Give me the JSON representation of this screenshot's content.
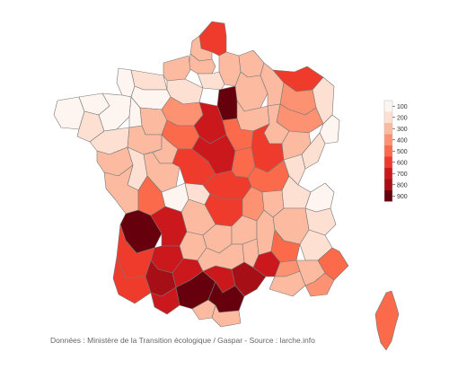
{
  "source_text": "Données : Ministère de la Transition écologique / Gaspar - Source : larche.info",
  "legend": {
    "ticks": [
      "100",
      "200",
      "300",
      "400",
      "500",
      "600",
      "700",
      "800",
      "900"
    ],
    "colors": [
      "#fff5f0",
      "#fee0d2",
      "#fcbba1",
      "#fc9272",
      "#fb6a4a",
      "#ef3b2c",
      "#cb181d",
      "#a50f15",
      "#67000d"
    ]
  },
  "map": {
    "type": "choropleth",
    "subject": "France departments",
    "color_scale": "white to dark red",
    "regions": [
      {
        "name": "nord",
        "value": 600
      },
      {
        "name": "pas-de-calais",
        "value": 300
      },
      {
        "name": "somme",
        "value": 300
      },
      {
        "name": "aisne",
        "value": 300
      },
      {
        "name": "oise",
        "value": 200
      },
      {
        "name": "paris-region",
        "value": 900
      },
      {
        "name": "manche",
        "value": 100
      },
      {
        "name": "calvados",
        "value": 200
      },
      {
        "name": "eure",
        "value": 200
      },
      {
        "name": "seine-maritime",
        "value": 300
      },
      {
        "name": "orne",
        "value": 100
      },
      {
        "name": "finistere",
        "value": 100
      },
      {
        "name": "cotes-darmor",
        "value": 100
      },
      {
        "name": "morbihan",
        "value": 200
      },
      {
        "name": "ille-et-vilaine",
        "value": 100
      },
      {
        "name": "loire-atlantique",
        "value": 200
      },
      {
        "name": "mayenne",
        "value": 100
      },
      {
        "name": "sarthe",
        "value": 300
      },
      {
        "name": "maine-et-loire",
        "value": 300
      },
      {
        "name": "vendee",
        "value": 300
      },
      {
        "name": "marne",
        "value": 300
      },
      {
        "name": "ardennes",
        "value": 300
      },
      {
        "name": "meuse",
        "value": 300
      },
      {
        "name": "moselle",
        "value": 600
      },
      {
        "name": "bas-rhin",
        "value": 200
      },
      {
        "name": "meurthe-et-moselle",
        "value": 400
      },
      {
        "name": "vosges",
        "value": 400
      },
      {
        "name": "haut-rhin",
        "value": 100
      },
      {
        "name": "aube",
        "value": 300
      },
      {
        "name": "haute-marne",
        "value": 300
      },
      {
        "name": "loiret",
        "value": 700
      },
      {
        "name": "eure-et-loir",
        "value": 400
      },
      {
        "name": "loir-et-cher",
        "value": 500
      },
      {
        "name": "indre-et-loire",
        "value": 300
      },
      {
        "name": "cher",
        "value": 700
      },
      {
        "name": "indre",
        "value": 600
      },
      {
        "name": "yonne",
        "value": 500
      },
      {
        "name": "cote-dor",
        "value": 600
      },
      {
        "name": "nievre",
        "value": 500
      },
      {
        "name": "saone-et-loire",
        "value": 500
      },
      {
        "name": "haute-saone",
        "value": 300
      },
      {
        "name": "doubs",
        "value": 200
      },
      {
        "name": "jura",
        "value": 200
      },
      {
        "name": "allier",
        "value": 600
      },
      {
        "name": "vienne",
        "value": 300
      },
      {
        "name": "deux-sevres",
        "value": 200
      },
      {
        "name": "charente-maritime",
        "value": 300
      },
      {
        "name": "charente",
        "value": 500
      },
      {
        "name": "haute-vienne",
        "value": 100
      },
      {
        "name": "creuse",
        "value": 200
      },
      {
        "name": "puy-de-dome",
        "value": 600
      },
      {
        "name": "correze",
        "value": 300
      },
      {
        "name": "cantal",
        "value": 300
      },
      {
        "name": "haute-loire",
        "value": 300
      },
      {
        "name": "loire",
        "value": 400
      },
      {
        "name": "rhone",
        "value": 300
      },
      {
        "name": "ain",
        "value": 200
      },
      {
        "name": "haute-savoie",
        "value": 100
      },
      {
        "name": "savoie",
        "value": 200
      },
      {
        "name": "isere",
        "value": 300
      },
      {
        "name": "gironde",
        "value": 900
      },
      {
        "name": "dordogne",
        "value": 700
      },
      {
        "name": "lot",
        "value": 300
      },
      {
        "name": "lot-et-garonne",
        "value": 700
      },
      {
        "name": "landes",
        "value": 600
      },
      {
        "name": "pyrenees-atlantiques",
        "value": 600
      },
      {
        "name": "gers",
        "value": 800
      },
      {
        "name": "tarn-et-garonne",
        "value": 700
      },
      {
        "name": "aveyron",
        "value": 300
      },
      {
        "name": "lozere",
        "value": 300
      },
      {
        "name": "ardeche",
        "value": 300
      },
      {
        "name": "drome",
        "value": 500
      },
      {
        "name": "hautes-alpes",
        "value": 200
      },
      {
        "name": "alpes-de-haute-provence",
        "value": 300
      },
      {
        "name": "alpes-maritimes",
        "value": 500
      },
      {
        "name": "haute-garonne",
        "value": 900
      },
      {
        "name": "tarn",
        "value": 700
      },
      {
        "name": "hautes-pyrenees",
        "value": 700
      },
      {
        "name": "ariege",
        "value": 300
      },
      {
        "name": "aude",
        "value": 900
      },
      {
        "name": "pyrenees-orientales",
        "value": 300
      },
      {
        "name": "herault",
        "value": 800
      },
      {
        "name": "gard",
        "value": 700
      },
      {
        "name": "vaucluse",
        "value": 400
      },
      {
        "name": "bouches-du-rhone",
        "value": 300
      },
      {
        "name": "var",
        "value": 400
      },
      {
        "name": "corse",
        "value": 500
      }
    ]
  }
}
